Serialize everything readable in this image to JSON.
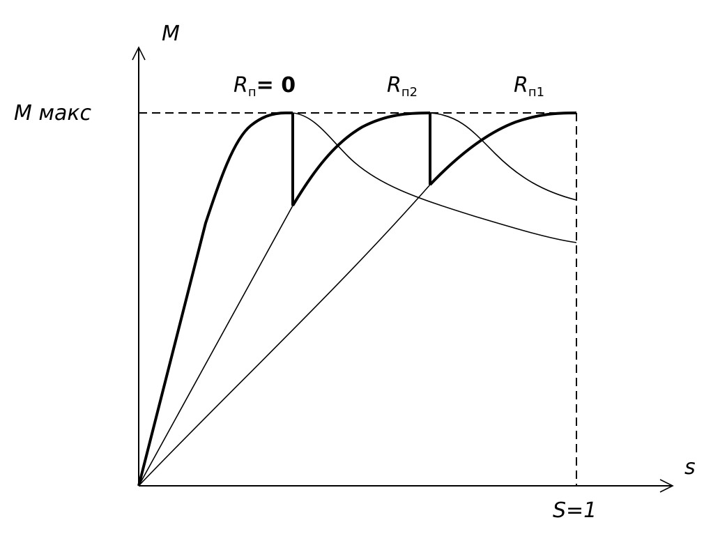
{
  "axes": {
    "y_label": "M",
    "x_label": "s",
    "y_max_label": "M макс",
    "x_end_label": "S=1"
  },
  "curves": [
    {
      "label": {
        "main": "R",
        "sub": "п",
        "suffix": "= 0"
      }
    },
    {
      "label": {
        "main": "R",
        "sub": "п2"
      }
    },
    {
      "label": {
        "main": "R",
        "sub": "п1"
      }
    }
  ]
}
